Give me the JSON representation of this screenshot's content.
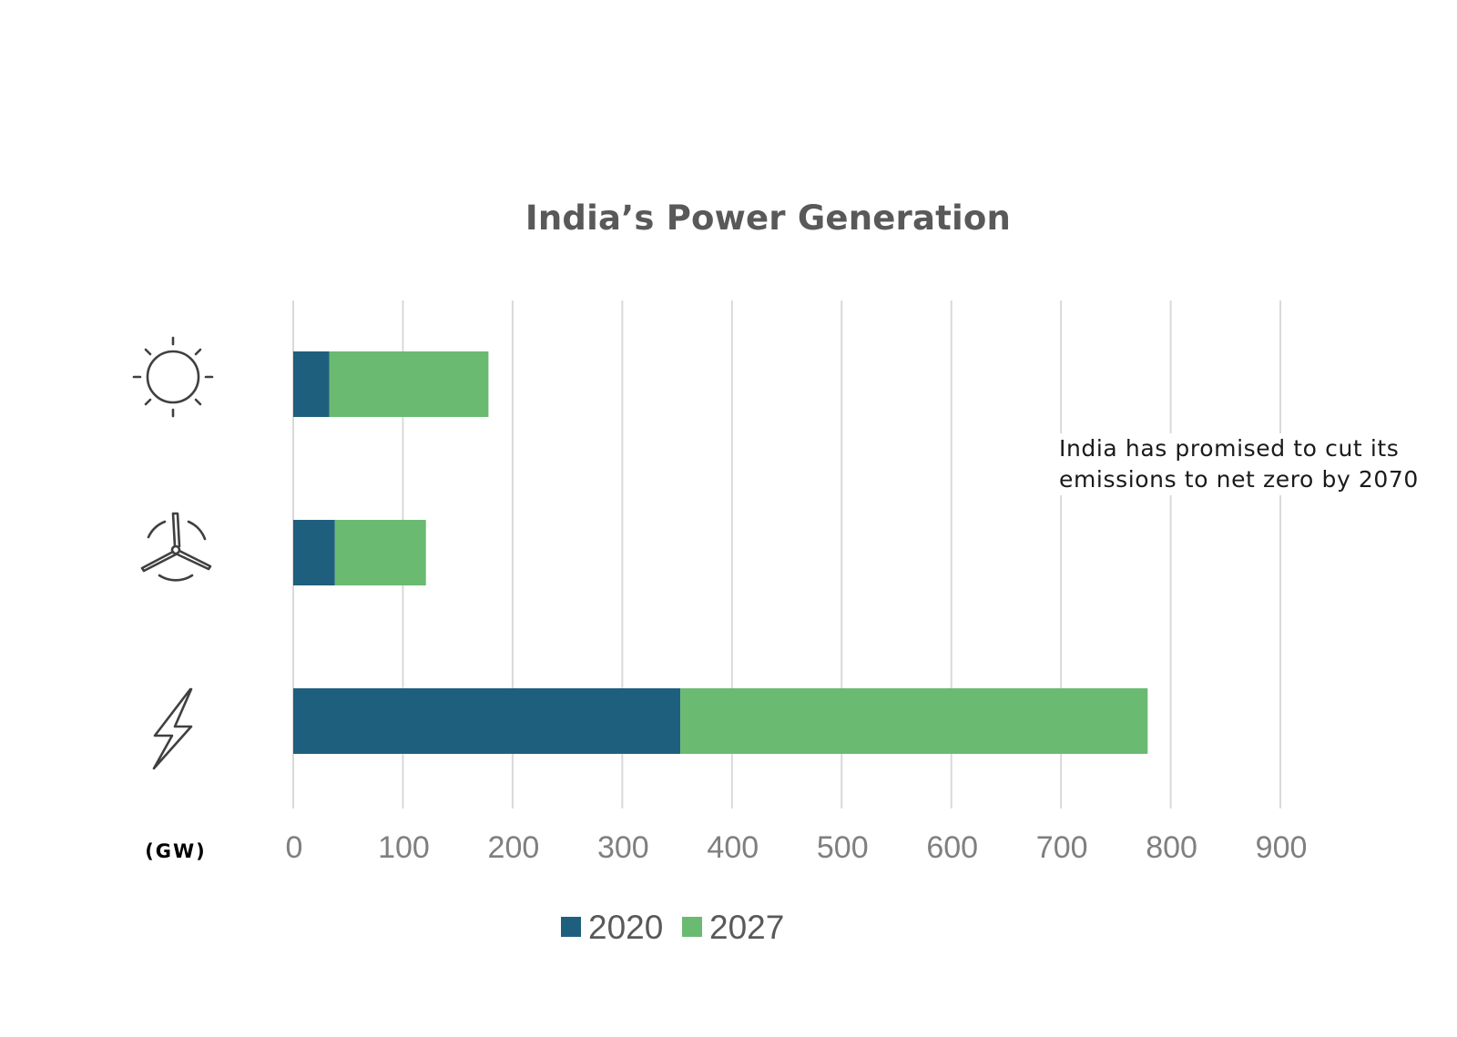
{
  "chart_data": {
    "type": "bar",
    "orientation": "horizontal",
    "stacked": true,
    "title": "India’s Power Generation",
    "unit": "(GW)",
    "categories": [
      "solar-icon",
      "wind-turbine-icon",
      "lightning-bolt-icon"
    ],
    "series": [
      {
        "name": "2020",
        "color": "#1f5f7e",
        "values": [
          33,
          38,
          353
        ]
      },
      {
        "name": "2027",
        "color": "#6aba72",
        "values": [
          145,
          83,
          426
        ]
      }
    ],
    "xlim": [
      0,
      900
    ],
    "x_ticks": [
      "0",
      "100",
      "200",
      "300",
      "400",
      "500",
      "600",
      "700",
      "800",
      "900"
    ],
    "grid": "vertical",
    "legend_position": "bottom",
    "annotation": "India has promised to cut its emissions to net zero by 2070"
  },
  "colors": {
    "grid": "#d9d9d9",
    "tick_text": "#7f7f7f",
    "title_text": "#595959"
  }
}
